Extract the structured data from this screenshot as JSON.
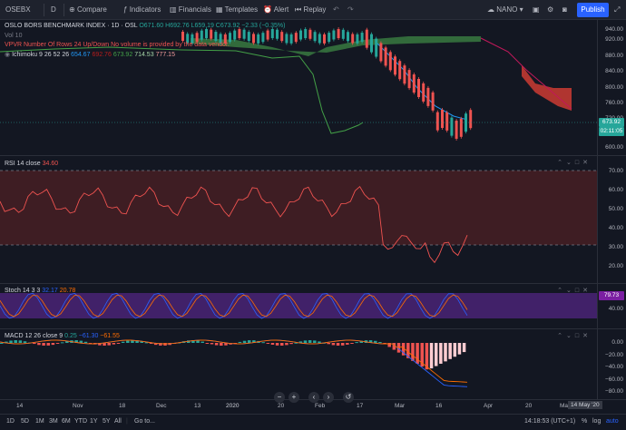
{
  "topbar": {
    "symbol": "OSEBX",
    "interval": "D",
    "compare": "Compare",
    "indicators": "Indicators",
    "financials": "Financials",
    "templates": "Templates",
    "alert": "Alert",
    "replay": "Replay",
    "layout": "NANO",
    "publish": "Publish"
  },
  "main": {
    "title": "OSLO BORS BENCHMARK INDEX · 1D · OSL",
    "ohlc": "O671.60 H692.76 L659.19 C673.92 −2.33 (−0.35%)",
    "vol_label": "Vol 10",
    "notice": "VPVR Number Of Rows 24 Up/Down No volume is provided by the data vendor.",
    "ichimoku_label": "Ichimoku 9 26 52 26",
    "ichimoku_values": [
      "654.67",
      "692.76",
      "673.92",
      "714.53",
      "777.15"
    ],
    "price_ticks": [
      "940.00",
      "920.00",
      "880.00",
      "840.00",
      "800.00",
      "760.00",
      "720.00",
      "680.00",
      "640.00",
      "600.00"
    ],
    "last_price": "673.92",
    "countdown": "02:11:05"
  },
  "rsi": {
    "label": "RSI 14 close",
    "value": "34.60",
    "ticks": [
      "70.00",
      "60.00",
      "50.00",
      "40.00",
      "30.00",
      "20.00"
    ]
  },
  "stoch": {
    "label": "Stoch 14 3 3",
    "k": "32.17",
    "d": "20.78",
    "ticks": [
      "79.73",
      "40.00",
      "0.00"
    ]
  },
  "macd": {
    "label": "MACD 12 26 close 9",
    "hist": "0.25",
    "macd": "−61.30",
    "signal": "−61.55",
    "ticks": [
      "0.00",
      "−20.00",
      "−40.00",
      "−60.00",
      "−80.00"
    ]
  },
  "time_axis": [
    "14",
    "Nov",
    "18",
    "Dec",
    "13",
    "2020",
    "20",
    "Feb",
    "17",
    "Mar",
    "16",
    "Apr",
    "20",
    "May",
    "14 May '20"
  ],
  "bottom": {
    "ranges": [
      "1D",
      "5D",
      "1M",
      "3M",
      "6M",
      "YTD",
      "1Y",
      "5Y",
      "All"
    ],
    "goto": "Go to...",
    "clock": "14:18:53 (UTC+1)",
    "percent": "%",
    "log": "log",
    "auto": "auto"
  },
  "colors": {
    "background": "#131722",
    "up": "#26a69a",
    "down": "#ef5350",
    "cloud_up": "#4caf50",
    "cloud_down": "#f44336",
    "rsi_band": "#4a1f24",
    "stoch_band": "#4a2375",
    "accent": "#2962ff"
  }
}
